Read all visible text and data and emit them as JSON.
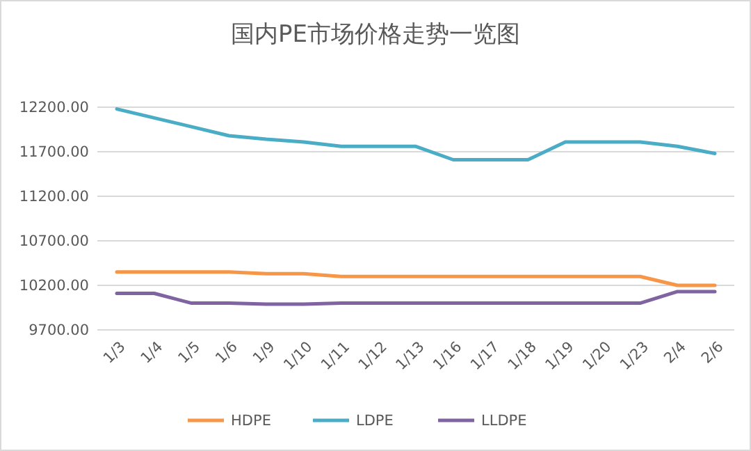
{
  "chart_data": {
    "type": "line",
    "title": "国内PE市场价格走势一览图",
    "categories": [
      "1/3",
      "1/4",
      "1/5",
      "1/6",
      "1/9",
      "1/10",
      "1/11",
      "1/12",
      "1/13",
      "1/16",
      "1/17",
      "1/18",
      "1/19",
      "1/20",
      "1/23",
      "2/4",
      "2/6"
    ],
    "series": [
      {
        "name": "HDPE",
        "color": "#f79646",
        "values": [
          10350,
          10350,
          10350,
          10350,
          10330,
          10330,
          10300,
          10300,
          10300,
          10300,
          10300,
          10300,
          10300,
          10300,
          10300,
          10200,
          10200
        ]
      },
      {
        "name": "LDPE",
        "color": "#4bacc6",
        "values": [
          12180,
          12080,
          11980,
          11880,
          11840,
          11810,
          11760,
          11760,
          11760,
          11610,
          11610,
          11610,
          11810,
          11810,
          11810,
          11760,
          11680
        ]
      },
      {
        "name": "LLDPE",
        "color": "#8064a2",
        "values": [
          10110,
          10110,
          10000,
          10000,
          9990,
          9990,
          10000,
          10000,
          10000,
          10000,
          10000,
          10000,
          10000,
          10000,
          10000,
          10130,
          10130
        ]
      }
    ],
    "ylim": [
      9700,
      12200
    ],
    "yticks": [
      {
        "value": 9700,
        "label": "9700.00"
      },
      {
        "value": 10200,
        "label": "10200.00"
      },
      {
        "value": 10700,
        "label": "10700.00"
      },
      {
        "value": 11200,
        "label": "11200.00"
      },
      {
        "value": 11700,
        "label": "11700.00"
      },
      {
        "value": 12200,
        "label": "12200.00"
      }
    ],
    "grid": "y",
    "legend": "bottom",
    "marker": "none",
    "line_style": "solid"
  }
}
